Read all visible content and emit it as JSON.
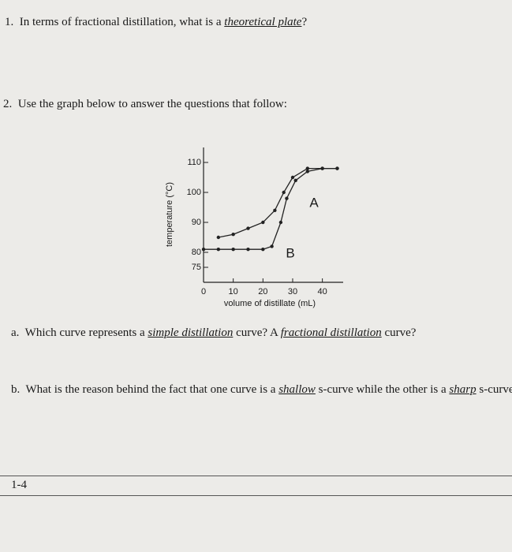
{
  "q1": {
    "number": "1.",
    "text": "In terms of fractional distillation, what is a ",
    "term": "theoretical plate",
    "end": "?"
  },
  "q2": {
    "number": "2.",
    "text": "Use the graph below to answer the questions that follow:"
  },
  "qa": {
    "letter": "a.",
    "parts": [
      "Which curve represents a ",
      "simple distillation",
      " curve? A ",
      "fractional distillation",
      " curve?"
    ]
  },
  "qb": {
    "letter": "b.",
    "parts": [
      "What is the reason behind the fact that one curve is a ",
      "shallow",
      " s-curve while the other is a ",
      "sharp",
      " s-curve?"
    ]
  },
  "footer": "1-4",
  "chart_data": {
    "type": "line",
    "xlabel": "volume of distillate (mL)",
    "ylabel": "temperature (°C)",
    "xlim": [
      0,
      47
    ],
    "ylim": [
      70,
      115
    ],
    "xticks": [
      0,
      10,
      20,
      30,
      40
    ],
    "yticks": [
      75,
      80,
      90,
      100,
      110
    ],
    "series": [
      {
        "name": "A",
        "color": "#222222",
        "x": [
          5,
          10,
          15,
          20,
          24,
          27,
          30,
          35,
          40,
          45
        ],
        "values": [
          85,
          86,
          88,
          90,
          94,
          100,
          105,
          108,
          108,
          108
        ]
      },
      {
        "name": "B",
        "color": "#222222",
        "x": [
          0,
          5,
          10,
          15,
          20,
          23,
          26,
          28,
          31,
          35,
          40,
          45
        ],
        "values": [
          81,
          81,
          81,
          81,
          81,
          82,
          90,
          98,
          104,
          107,
          108,
          108
        ]
      }
    ]
  }
}
